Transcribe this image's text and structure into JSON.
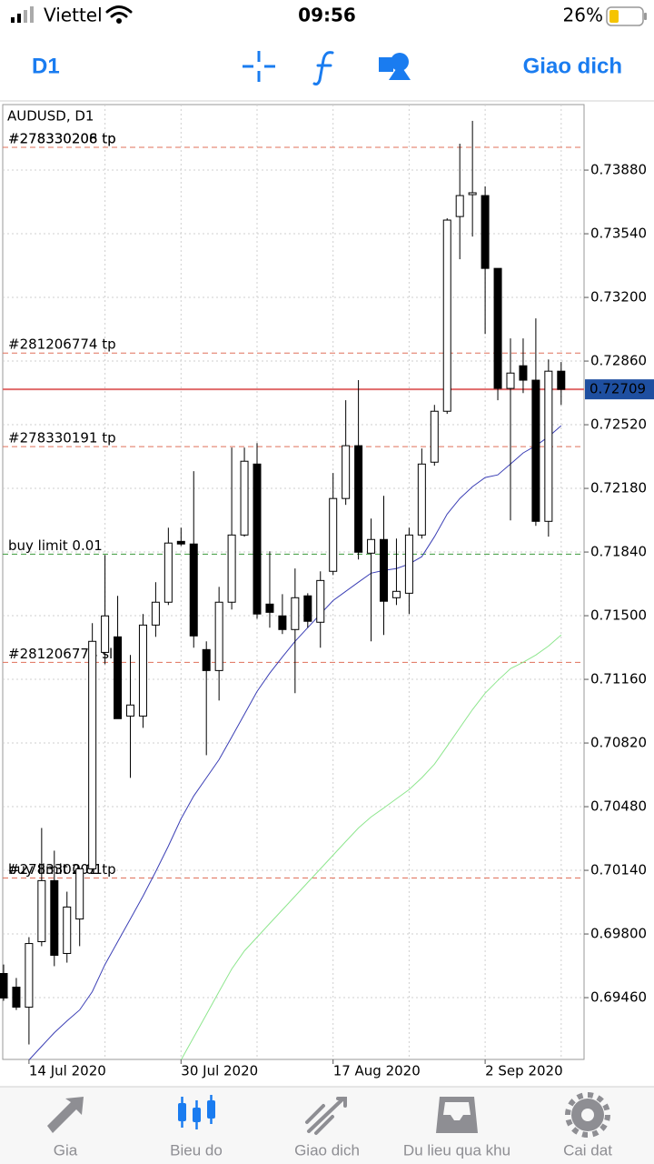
{
  "status_bar": {
    "carrier": "Viettel",
    "time": "09:56",
    "battery": "26%"
  },
  "toolbar": {
    "timeframe": "D1",
    "action": "Giao dich"
  },
  "chart_data": {
    "type": "candlestick",
    "title": "AUDUSD, D1",
    "categories": [
      null,
      null,
      "14 Jul 2020",
      null,
      null,
      null,
      null,
      null,
      null,
      null,
      null,
      null,
      null,
      null,
      "30 Jul 2020",
      null,
      null,
      null,
      null,
      null,
      null,
      null,
      null,
      null,
      null,
      null,
      "17 Aug 2020",
      null,
      null,
      null,
      null,
      null,
      null,
      null,
      null,
      null,
      null,
      null,
      "2 Sep 2020",
      null,
      null,
      null,
      null,
      null,
      null
    ],
    "open": [
      0.69589,
      0.69516,
      0.69409,
      0.69759,
      0.70085,
      0.69696,
      0.6988,
      0.70148,
      0.71304,
      0.71387,
      0.70964,
      0.70964,
      0.7145,
      0.71572,
      0.71897,
      0.71883,
      0.71319,
      0.71207,
      0.71572,
      0.71931,
      0.7231,
      0.71562,
      0.71499,
      0.71426,
      0.71606,
      0.71465,
      0.71737,
      0.72126,
      0.72408,
      0.71834,
      0.71907,
      0.71596,
      0.7162,
      0.71931,
      0.7232,
      0.72592,
      0.73632,
      0.73749,
      0.73744,
      0.73355,
      0.72714,
      0.72835,
      0.72758,
      0.72004,
      0.72806
    ],
    "high": [
      0.69637,
      0.69565,
      0.69783,
      0.70366,
      0.70245,
      0.70026,
      0.70148,
      0.7146,
      0.71824,
      0.71606,
      0.7129,
      0.71509,
      0.71679,
      0.7197,
      0.7197,
      0.72272,
      0.71363,
      0.71654,
      0.72398,
      0.72398,
      0.72422,
      0.71844,
      0.71615,
      0.71752,
      0.7162,
      0.71737,
      0.72262,
      0.72651,
      0.72758,
      0.72019,
      0.7214,
      0.71912,
      0.7197,
      0.72393,
      0.72626,
      0.73623,
      0.74021,
      0.74143,
      0.73793,
      0.73355,
      0.72981,
      0.72981,
      0.73088,
      0.72869,
      0.72855
    ],
    "low": [
      0.69443,
      0.69394,
      0.6921,
      0.69735,
      0.69628,
      0.69647,
      0.69735,
      0.70148,
      0.71241,
      0.7095,
      0.70634,
      0.70901,
      0.71387,
      0.71557,
      0.71873,
      0.71329,
      0.70755,
      0.71047,
      0.71533,
      0.71922,
      0.71484,
      0.71436,
      0.71402,
      0.71086,
      0.71436,
      0.71329,
      0.71717,
      0.72092,
      0.718,
      0.71363,
      0.71397,
      0.71557,
      0.71509,
      0.71912,
      0.72301,
      0.72578,
      0.73404,
      0.73525,
      0.73005,
      0.72651,
      0.72009,
      0.72689,
      0.7198,
      0.71922,
      0.72626
    ],
    "close": [
      0.69458,
      0.69409,
      0.69749,
      0.70085,
      0.69686,
      0.69944,
      0.70148,
      0.71363,
      0.71499,
      0.7095,
      0.71023,
      0.7145,
      0.71572,
      0.71888,
      0.71883,
      0.71392,
      0.71207,
      0.71572,
      0.71931,
      0.72325,
      0.71509,
      0.71518,
      0.71426,
      0.71596,
      0.7147,
      0.71688,
      0.72126,
      0.72408,
      0.71839,
      0.71907,
      0.71577,
      0.7163,
      0.71931,
      0.7231,
      0.72592,
      0.73613,
      0.73744,
      0.73759,
      0.73355,
      0.72714,
      0.72796,
      0.72758,
      0.72004,
      0.72806,
      0.72709
    ],
    "moving_averages": [
      {
        "color": "#3b3fb5",
        "values": [
          null,
          null,
          0.69127,
          0.692,
          0.69273,
          0.69336,
          0.69394,
          0.69492,
          0.69637,
          0.69759,
          0.6988,
          0.70002,
          0.70133,
          0.70269,
          0.70415,
          0.70537,
          0.70634,
          0.70731,
          0.70852,
          0.70974,
          0.71095,
          0.71193,
          0.7128,
          0.71363,
          0.71436,
          0.71509,
          0.71581,
          0.7163,
          0.71679,
          0.71727,
          0.71742,
          0.71752,
          0.71776,
          0.71815,
          0.71922,
          0.72043,
          0.72126,
          0.72189,
          0.72238,
          0.72252,
          0.7231,
          0.72369,
          0.72408,
          0.72456,
          0.72515
        ]
      },
      {
        "color": "#8ee68e",
        "values": [
          null,
          null,
          null,
          null,
          null,
          null,
          null,
          null,
          null,
          null,
          null,
          null,
          null,
          null,
          0.69127,
          0.69249,
          0.6937,
          0.69492,
          0.69613,
          0.6971,
          0.69783,
          0.69856,
          0.69929,
          0.70002,
          0.70075,
          0.70148,
          0.70221,
          0.70294,
          0.70366,
          0.70425,
          0.70473,
          0.70522,
          0.70571,
          0.70634,
          0.70707,
          0.70804,
          0.70901,
          0.70998,
          0.71086,
          0.71154,
          0.71217,
          0.71251,
          0.7129,
          0.71338,
          0.71397
        ]
      }
    ],
    "order_lines": [
      {
        "label": "#278330206 tp",
        "value": 0.74002,
        "color": "#e0705a"
      },
      {
        "label": "#278330208 tp",
        "value": 0.74002,
        "color": "#e0705a"
      },
      {
        "label": "#281206774 tp",
        "value": 0.72903,
        "color": "#e0705a"
      },
      {
        "label": "#278330191 tp",
        "value": 0.72403,
        "color": "#e0705a"
      },
      {
        "label": "buy limit 0.01",
        "value": 0.71829,
        "color": "#3a9a3a"
      },
      {
        "label": "#281206774 sl",
        "value": 0.71251,
        "color": "#e0705a"
      },
      {
        "label": "buy limit 0.01",
        "value": 0.70099,
        "color": "#3a9a3a"
      },
      {
        "label": "#278330201 tp",
        "value": 0.70099,
        "color": "#e0705a"
      }
    ],
    "current_price": {
      "value": 0.72709,
      "label": "0.72709",
      "color": "#e06a6a"
    },
    "ylim": [
      0.6913,
      0.7423
    ],
    "yticks": [
      {
        "value": 0.6946,
        "label": "0.69460"
      },
      {
        "value": 0.698,
        "label": "0.69800"
      },
      {
        "value": 0.7014,
        "label": "0.70140"
      },
      {
        "value": 0.7048,
        "label": "0.70480"
      },
      {
        "value": 0.7082,
        "label": "0.70820"
      },
      {
        "value": 0.7116,
        "label": "0.71160"
      },
      {
        "value": 0.715,
        "label": "0.71500"
      },
      {
        "value": 0.7184,
        "label": "0.71840"
      },
      {
        "value": 0.7218,
        "label": "0.72180"
      },
      {
        "value": 0.7252,
        "label": "0.72520"
      },
      {
        "value": 0.7286,
        "label": "0.72860"
      },
      {
        "value": 0.732,
        "label": "0.73200"
      },
      {
        "value": 0.7354,
        "label": "0.73540"
      },
      {
        "value": 0.7388,
        "label": "0.73880"
      }
    ],
    "grid": true
  },
  "tab_bar": {
    "tabs": [
      "Gia",
      "Bieu do",
      "Giao dich",
      "Du lieu qua khu",
      "Cai dat"
    ],
    "active": 1
  }
}
